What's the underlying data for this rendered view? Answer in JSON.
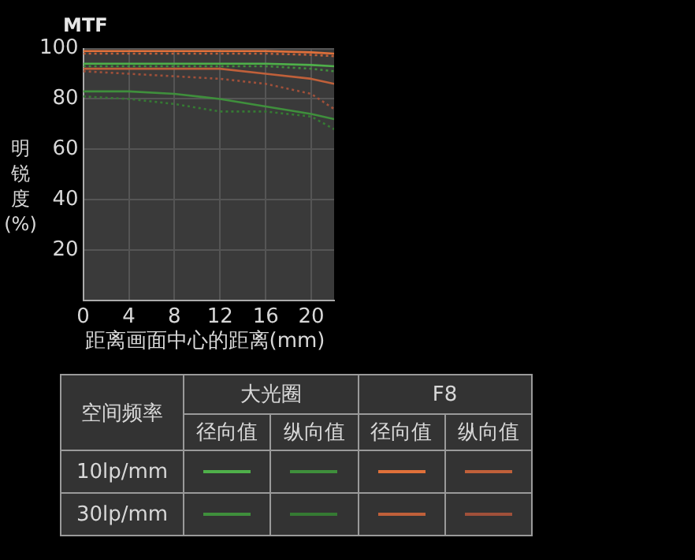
{
  "chart_data": {
    "type": "line",
    "title": "MTF",
    "xlabel": "距离画面中心的距离(mm)",
    "ylabel": "明锐度(%)",
    "x": [
      0,
      4,
      8,
      12,
      16,
      20,
      22
    ],
    "xlim": [
      0,
      22
    ],
    "xticks": [
      0,
      4,
      8,
      12,
      16,
      20
    ],
    "ylim": [
      0,
      100
    ],
    "yticks": [
      20,
      40,
      60,
      80,
      100
    ],
    "grid": true,
    "series": [
      {
        "color": "#4fb04a",
        "line_style": "solid",
        "values": [
          94,
          94,
          94,
          94,
          94,
          93.5,
          93
        ]
      },
      {
        "color": "#3f8f3c",
        "line_style": "dotted",
        "values": [
          93,
          93,
          93,
          93,
          93,
          92,
          91
        ]
      },
      {
        "color": "#e0703a",
        "line_style": "solid",
        "values": [
          99,
          99,
          99,
          99,
          99,
          98.5,
          98
        ]
      },
      {
        "color": "#c0603a",
        "line_style": "dotted",
        "values": [
          98,
          98,
          98,
          98,
          98,
          97.5,
          97
        ]
      },
      {
        "color": "#3f8f3c",
        "line_style": "solid",
        "values": [
          83,
          83,
          82,
          80,
          77,
          74,
          72
        ]
      },
      {
        "color": "#357a33",
        "line_style": "dotted",
        "values": [
          81,
          80,
          78,
          75,
          75,
          73,
          68
        ]
      },
      {
        "color": "#c0603a",
        "line_style": "solid",
        "values": [
          92,
          92,
          92,
          92,
          90,
          88,
          86
        ]
      },
      {
        "color": "#a0503a",
        "line_style": "dotted",
        "values": [
          91,
          90,
          89,
          88,
          86,
          82,
          76
        ]
      }
    ],
    "annotations": [
      "空间频率",
      "大光圈",
      "F8",
      "径向值",
      "纵向值",
      "径向值",
      "纵向值",
      "10lp/mm",
      "30lp/mm"
    ]
  }
}
